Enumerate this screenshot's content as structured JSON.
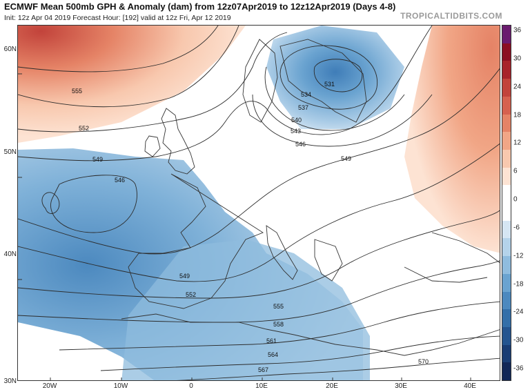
{
  "header": {
    "title": "ECMWF Mean 500mb GPH & Anomaly (dam) from 12z07Apr2019 to 12z12Apr2019 (Days 4-8)",
    "subtitle": "Init: 12z Apr 04 2019   Forecast Hour: [192]   valid at 12z Fri, Apr 12 2019",
    "brand": "TROPICALTIDBITS.COM"
  },
  "axes": {
    "lat_labels": [
      "60N",
      "50N",
      "40N",
      "30N"
    ],
    "lon_labels": [
      "20W",
      "10W",
      "0",
      "10E",
      "20E",
      "30E",
      "40E"
    ]
  },
  "colorbar": {
    "labels": [
      "36",
      "30",
      "24",
      "18",
      "12",
      "6",
      "0",
      "-6",
      "-12",
      "-18",
      "-24",
      "-30",
      "-36"
    ],
    "colors": [
      "#6a1b6e",
      "#8b0f22",
      "#a8232b",
      "#c2433b",
      "#d6614f",
      "#e58366",
      "#f1a686",
      "#f8c8ae",
      "#fde3d3",
      "#ffffff",
      "#ffffff",
      "#d5e6f3",
      "#b4d3ea",
      "#8fbcde",
      "#6aa3d0",
      "#4c89bf",
      "#336fa9",
      "#245590",
      "#193d74",
      "#112757"
    ]
  },
  "contours": {
    "labels": [
      "555",
      "552",
      "549",
      "546",
      "549",
      "552",
      "555",
      "558",
      "561",
      "564",
      "567",
      "570",
      "531",
      "534",
      "537",
      "540",
      "543",
      "546",
      "549"
    ]
  },
  "colors": {
    "positive": "#e8876a",
    "negative": "#6aa3d0",
    "border": "#333333"
  }
}
